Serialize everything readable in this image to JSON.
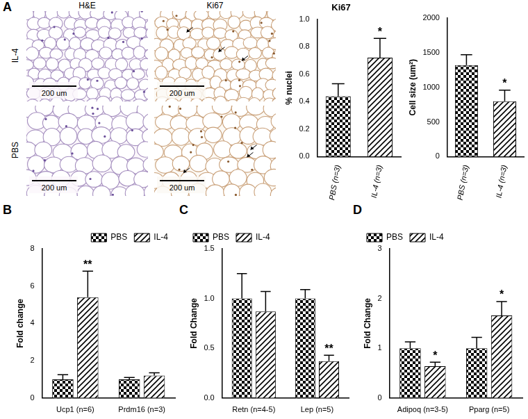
{
  "panels": [
    "A",
    "B",
    "C",
    "D"
  ],
  "micrographs": {
    "columns": [
      "H&E",
      "Ki67"
    ],
    "rows": [
      "IL-4",
      "PBS"
    ],
    "scale_bar": "200 um"
  },
  "chart_data": [
    {
      "type": "bar",
      "title": "Ki67",
      "y_label": "% nuclei",
      "categories": [
        "PBS (n=3)",
        "IL-4 (n=3)"
      ],
      "values": [
        0.44,
        0.72
      ],
      "errors": [
        0.09,
        0.14
      ],
      "color": "#000000",
      "ylim": [
        0,
        1
      ],
      "yticks": [
        {
          "value": 0,
          "label": "0.0"
        },
        0.2,
        0.4,
        0.6,
        0.8,
        {
          "value": 1,
          "label": "1.0"
        }
      ],
      "grid": false,
      "annotations": [
        {
          "text": "*",
          "category": "IL-4 (n=3)"
        }
      ]
    },
    {
      "type": "bar",
      "y_label": "Cell size (um²)",
      "categories": [
        "PBS (n=3)",
        "IL-4 (n=3)"
      ],
      "values": [
        1320,
        800
      ],
      "errors": [
        150,
        160
      ],
      "color": "#000000",
      "ylim": [
        0,
        2000
      ],
      "yticks": [
        0,
        500,
        1000,
        1500,
        2000
      ],
      "grid": false,
      "annotations": [
        {
          "text": "*",
          "category": "IL-4 (n=3)"
        }
      ]
    },
    {
      "type": "bar",
      "y_label": "Fold change",
      "categories": [
        "Ucp1 (n=6)",
        "Prdm16 (n=3)"
      ],
      "series": [
        {
          "name": "PBS",
          "color": "#000000",
          "values": [
            1.0,
            1.0
          ],
          "errors": [
            0.25,
            0.1
          ]
        },
        {
          "name": "IL-4",
          "color": "#000000",
          "values": [
            5.4,
            1.2
          ],
          "errors": [
            1.4,
            0.15
          ]
        }
      ],
      "ylim": [
        0,
        8
      ],
      "yticks": [
        0,
        2,
        4,
        6,
        8
      ],
      "grid": false,
      "legend": "upper right",
      "annotations": [
        {
          "text": "**",
          "category": "Ucp1 (n=6)",
          "series": "IL-4"
        }
      ]
    },
    {
      "type": "bar",
      "y_label": "Fold Change",
      "categories": [
        "Retn (n=4-5)",
        "Lep (n=5)"
      ],
      "series": [
        {
          "name": "PBS",
          "color": "#000000",
          "values": [
            1.0,
            1.0
          ],
          "errors": [
            0.25,
            0.09
          ]
        },
        {
          "name": "IL-4",
          "color": "#000000",
          "values": [
            0.87,
            0.37
          ],
          "errors": [
            0.2,
            0.06
          ]
        }
      ],
      "ylim": [
        0,
        1.5
      ],
      "yticks": [
        {
          "value": 0,
          "label": "0.0"
        },
        0.5,
        {
          "value": 1,
          "label": "1.0"
        },
        1.5
      ],
      "grid": false,
      "legend": "upper left",
      "annotations": [
        {
          "text": "**",
          "category": "Lep (n=5)",
          "series": "IL-4"
        }
      ]
    },
    {
      "type": "bar",
      "y_label": "Fold Change",
      "categories": [
        "Adipoq (n=3-5)",
        "Pparg (n=5)"
      ],
      "series": [
        {
          "name": "PBS",
          "color": "#000000",
          "values": [
            1.0,
            1.0
          ],
          "errors": [
            0.13,
            0.22
          ]
        },
        {
          "name": "IL-4",
          "color": "#000000",
          "values": [
            0.64,
            1.66
          ],
          "errors": [
            0.08,
            0.28
          ]
        }
      ],
      "ylim": [
        0,
        3
      ],
      "yticks": [
        0,
        1,
        2,
        3
      ],
      "grid": false,
      "legend": "upper left",
      "annotations": [
        {
          "text": "*",
          "category": "Adipoq (n=3-5)",
          "series": "IL-4"
        },
        {
          "text": "*",
          "category": "Pparg (n=5)",
          "series": "IL-4"
        }
      ]
    }
  ]
}
